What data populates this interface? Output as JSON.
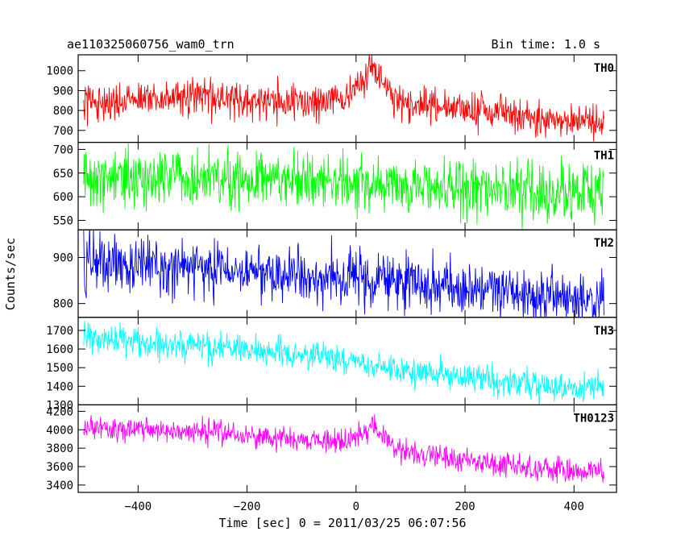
{
  "header": {
    "title": "ae110325060756_wam0_trn",
    "bin_time": "Bin time: 1.0 s"
  },
  "chart_data": {
    "type": "line",
    "xlabel": "Time [sec] 0 = 2011/03/25 06:07:56",
    "ylabel": "Counts/sec",
    "xlim": [
      -510,
      478
    ],
    "x_ticks": [
      -400,
      -200,
      0,
      200,
      400
    ],
    "x_tick_labels": [
      "−400",
      "−200",
      "0",
      "200",
      "400"
    ],
    "x_range_data": [
      -500,
      455
    ],
    "bin_time_s": 1.0,
    "panels": [
      {
        "label": "TH0",
        "color": "#ff0000",
        "ylim": [
          640,
          1080
        ],
        "y_ticks": [
          700,
          800,
          900,
          1000
        ],
        "y_tick_labels": [
          "700",
          "800",
          "900",
          "1000"
        ],
        "trend": [
          [
            -500,
            850
          ],
          [
            -400,
            860
          ],
          [
            -300,
            870
          ],
          [
            -200,
            850
          ],
          [
            -100,
            840
          ],
          [
            -20,
            860
          ],
          [
            10,
            920
          ],
          [
            30,
            1030
          ],
          [
            45,
            960
          ],
          [
            70,
            860
          ],
          [
            150,
            820
          ],
          [
            250,
            790
          ],
          [
            350,
            760
          ],
          [
            455,
            740
          ]
        ],
        "noise": 45
      },
      {
        "label": "TH1",
        "color": "#00ff00",
        "ylim": [
          530,
          715
        ],
        "y_ticks": [
          550,
          600,
          650,
          700
        ],
        "y_tick_labels": [
          "550",
          "600",
          "650",
          "700"
        ],
        "trend": [
          [
            -500,
            640
          ],
          [
            -250,
            640
          ],
          [
            0,
            630
          ],
          [
            250,
            615
          ],
          [
            455,
            605
          ]
        ],
        "noise": 30
      },
      {
        "label": "TH2",
        "color": "#0000ff",
        "ylim": [
          770,
          960
        ],
        "y_ticks": [
          800,
          900
        ],
        "y_tick_labels": [
          "800",
          "900"
        ],
        "trend": [
          [
            -500,
            890
          ],
          [
            -250,
            875
          ],
          [
            0,
            855
          ],
          [
            250,
            825
          ],
          [
            455,
            808
          ]
        ],
        "noise": 30
      },
      {
        "label": "TH3",
        "color": "#00ffff",
        "ylim": [
          1300,
          1770
        ],
        "y_ticks": [
          1300,
          1400,
          1500,
          1600,
          1700
        ],
        "y_tick_labels": [
          "1300",
          "1400",
          "1500",
          "1600",
          "1700"
        ],
        "trend": [
          [
            -500,
            1660
          ],
          [
            -300,
            1620
          ],
          [
            -100,
            1570
          ],
          [
            100,
            1480
          ],
          [
            300,
            1410
          ],
          [
            455,
            1385
          ]
        ],
        "noise": 40
      },
      {
        "label": "TH0123",
        "color": "#ff00ff",
        "ylim": [
          3320,
          4270
        ],
        "y_ticks": [
          3400,
          3600,
          3800,
          4000,
          4200
        ],
        "y_tick_labels": [
          "3400",
          "3600",
          "3800",
          "4000",
          "4200"
        ],
        "trend": [
          [
            -500,
            4010
          ],
          [
            -300,
            3990
          ],
          [
            -150,
            3920
          ],
          [
            -20,
            3860
          ],
          [
            20,
            3970
          ],
          [
            30,
            4080
          ],
          [
            45,
            3970
          ],
          [
            80,
            3770
          ],
          [
            200,
            3660
          ],
          [
            330,
            3580
          ],
          [
            455,
            3530
          ]
        ],
        "noise": 65
      }
    ]
  }
}
